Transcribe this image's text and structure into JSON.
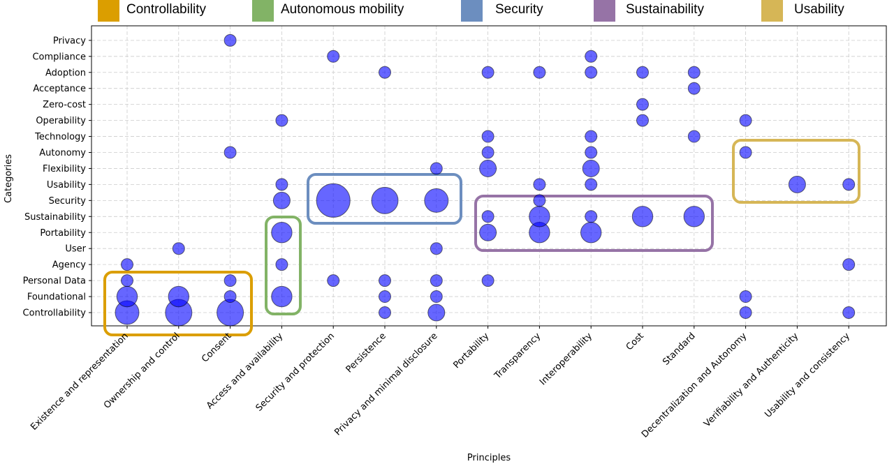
{
  "legend": [
    {
      "label": "Controllability",
      "color": "#DB9E00"
    },
    {
      "label": "Autonomous mobility",
      "color": "#82B366"
    },
    {
      "label": "Security",
      "color": "#6C8EBF"
    },
    {
      "label": "Sustainability",
      "color": "#9673A6"
    },
    {
      "label": "Usability",
      "color": "#D6B656"
    }
  ],
  "chart_data": {
    "type": "scatter",
    "xlabel": "Principles",
    "ylabel": "Categories",
    "grid": true,
    "legend_position": "top",
    "marker_color": "#0000FF",
    "x_categories": [
      "Existence and representation",
      "Ownership and control",
      "Consent",
      "Access and availability",
      "Security and protection",
      "Persistence",
      "Privacy and minimal disclosure",
      "Portability",
      "Transparency",
      "Interoperability",
      "Cost",
      "Standard",
      "Decentralization and Autonomy",
      "Verifiability and Authenticity",
      "Usability and consistency"
    ],
    "y_categories": [
      "Controllability",
      "Foundational",
      "Personal Data",
      "Agency",
      "User",
      "Portability",
      "Sustainability",
      "Security",
      "Usability",
      "Flexibility",
      "Autonomy",
      "Technology",
      "Operability",
      "Zero-cost",
      "Acceptance",
      "Adoption",
      "Compliance",
      "Privacy"
    ],
    "points": [
      {
        "x": "Existence and representation",
        "y": "Controllability",
        "size": 4
      },
      {
        "x": "Existence and representation",
        "y": "Foundational",
        "size": 3
      },
      {
        "x": "Existence and representation",
        "y": "Personal Data",
        "size": 1
      },
      {
        "x": "Existence and representation",
        "y": "Agency",
        "size": 1
      },
      {
        "x": "Ownership and control",
        "y": "Controllability",
        "size": 5
      },
      {
        "x": "Ownership and control",
        "y": "Foundational",
        "size": 3
      },
      {
        "x": "Ownership and control",
        "y": "User",
        "size": 1
      },
      {
        "x": "Consent",
        "y": "Controllability",
        "size": 5
      },
      {
        "x": "Consent",
        "y": "Foundational",
        "size": 1
      },
      {
        "x": "Consent",
        "y": "Personal Data",
        "size": 1
      },
      {
        "x": "Consent",
        "y": "Autonomy",
        "size": 1
      },
      {
        "x": "Consent",
        "y": "Privacy",
        "size": 1
      },
      {
        "x": "Access and availability",
        "y": "Foundational",
        "size": 3
      },
      {
        "x": "Access and availability",
        "y": "Agency",
        "size": 1
      },
      {
        "x": "Access and availability",
        "y": "Portability",
        "size": 3
      },
      {
        "x": "Access and availability",
        "y": "Security",
        "size": 2
      },
      {
        "x": "Access and availability",
        "y": "Usability",
        "size": 1
      },
      {
        "x": "Access and availability",
        "y": "Operability",
        "size": 1
      },
      {
        "x": "Security and protection",
        "y": "Personal Data",
        "size": 1
      },
      {
        "x": "Security and protection",
        "y": "Security",
        "size": 8
      },
      {
        "x": "Security and protection",
        "y": "Compliance",
        "size": 1
      },
      {
        "x": "Persistence",
        "y": "Controllability",
        "size": 1
      },
      {
        "x": "Persistence",
        "y": "Foundational",
        "size": 1
      },
      {
        "x": "Persistence",
        "y": "Personal Data",
        "size": 1
      },
      {
        "x": "Persistence",
        "y": "Security",
        "size": 5
      },
      {
        "x": "Persistence",
        "y": "Adoption",
        "size": 1
      },
      {
        "x": "Privacy and minimal disclosure",
        "y": "Controllability",
        "size": 2
      },
      {
        "x": "Privacy and minimal disclosure",
        "y": "Foundational",
        "size": 1
      },
      {
        "x": "Privacy and minimal disclosure",
        "y": "Personal Data",
        "size": 1
      },
      {
        "x": "Privacy and minimal disclosure",
        "y": "User",
        "size": 1
      },
      {
        "x": "Privacy and minimal disclosure",
        "y": "Security",
        "size": 4
      },
      {
        "x": "Privacy and minimal disclosure",
        "y": "Flexibility",
        "size": 1
      },
      {
        "x": "Portability",
        "y": "Personal Data",
        "size": 1
      },
      {
        "x": "Portability",
        "y": "Portability",
        "size": 2
      },
      {
        "x": "Portability",
        "y": "Sustainability",
        "size": 1
      },
      {
        "x": "Portability",
        "y": "Flexibility",
        "size": 2
      },
      {
        "x": "Portability",
        "y": "Autonomy",
        "size": 1
      },
      {
        "x": "Portability",
        "y": "Technology",
        "size": 1
      },
      {
        "x": "Portability",
        "y": "Adoption",
        "size": 1
      },
      {
        "x": "Transparency",
        "y": "Portability",
        "size": 3
      },
      {
        "x": "Transparency",
        "y": "Sustainability",
        "size": 3
      },
      {
        "x": "Transparency",
        "y": "Security",
        "size": 1
      },
      {
        "x": "Transparency",
        "y": "Usability",
        "size": 1
      },
      {
        "x": "Transparency",
        "y": "Adoption",
        "size": 1
      },
      {
        "x": "Interoperability",
        "y": "Portability",
        "size": 3
      },
      {
        "x": "Interoperability",
        "y": "Sustainability",
        "size": 1
      },
      {
        "x": "Interoperability",
        "y": "Usability",
        "size": 1
      },
      {
        "x": "Interoperability",
        "y": "Flexibility",
        "size": 2
      },
      {
        "x": "Interoperability",
        "y": "Autonomy",
        "size": 1
      },
      {
        "x": "Interoperability",
        "y": "Technology",
        "size": 1
      },
      {
        "x": "Interoperability",
        "y": "Adoption",
        "size": 1
      },
      {
        "x": "Interoperability",
        "y": "Compliance",
        "size": 1
      },
      {
        "x": "Cost",
        "y": "Sustainability",
        "size": 3
      },
      {
        "x": "Cost",
        "y": "Operability",
        "size": 1
      },
      {
        "x": "Cost",
        "y": "Zero-cost",
        "size": 1
      },
      {
        "x": "Cost",
        "y": "Adoption",
        "size": 1
      },
      {
        "x": "Standard",
        "y": "Sustainability",
        "size": 3
      },
      {
        "x": "Standard",
        "y": "Technology",
        "size": 1
      },
      {
        "x": "Standard",
        "y": "Acceptance",
        "size": 1
      },
      {
        "x": "Standard",
        "y": "Adoption",
        "size": 1
      },
      {
        "x": "Decentralization and Autonomy",
        "y": "Controllability",
        "size": 1
      },
      {
        "x": "Decentralization and Autonomy",
        "y": "Foundational",
        "size": 1
      },
      {
        "x": "Decentralization and Autonomy",
        "y": "Autonomy",
        "size": 1
      },
      {
        "x": "Decentralization and Autonomy",
        "y": "Operability",
        "size": 1
      },
      {
        "x": "Verifiability and Authenticity",
        "y": "Usability",
        "size": 2
      },
      {
        "x": "Usability and consistency",
        "y": "Controllability",
        "size": 1
      },
      {
        "x": "Usability and consistency",
        "y": "Agency",
        "size": 1
      },
      {
        "x": "Usability and consistency",
        "y": "Usability",
        "size": 1
      }
    ],
    "groups": [
      {
        "label": "Controllability",
        "color": "#DB9E00",
        "x_range": [
          "Existence and representation",
          "Consent"
        ],
        "y_range": [
          "Controllability",
          "Personal Data"
        ]
      },
      {
        "label": "Autonomous mobility",
        "color": "#82B366",
        "x_range": [
          "Access and availability",
          "Access and availability"
        ],
        "y_range": [
          "Foundational",
          "Portability"
        ]
      },
      {
        "label": "Security",
        "color": "#6C8EBF",
        "x_range": [
          "Security and protection",
          "Privacy and minimal disclosure"
        ],
        "y_range": [
          "Sustainability",
          "Usability"
        ]
      },
      {
        "label": "Sustainability",
        "color": "#9673A6",
        "x_range": [
          "Portability",
          "Standard"
        ],
        "y_range": [
          "User",
          "Security"
        ]
      },
      {
        "label": "Usability",
        "color": "#D6B656",
        "x_range": [
          "Decentralization and Autonomy",
          "Usability and consistency"
        ],
        "y_range": [
          "Security",
          "Autonomy"
        ]
      }
    ]
  }
}
